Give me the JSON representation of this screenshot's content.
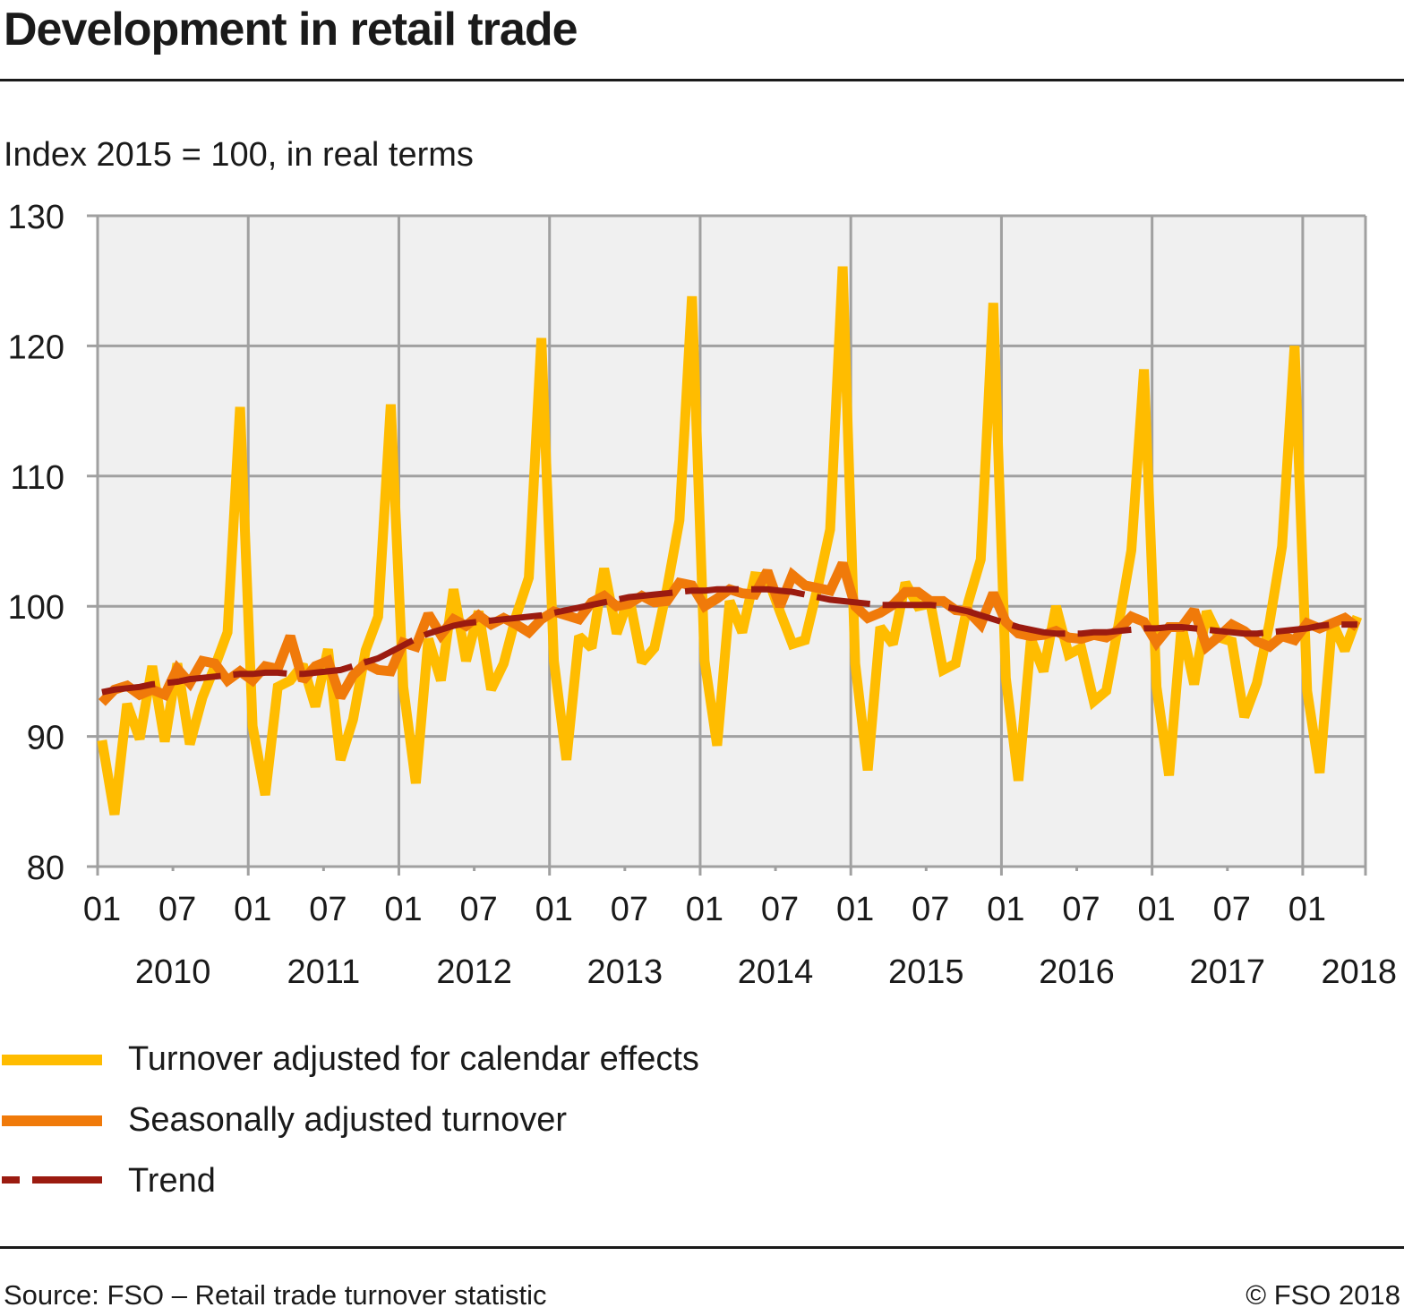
{
  "title": "Development in retail trade",
  "subtitle": "Index 2015 = 100, in real terms",
  "footer": {
    "source": "Source: FSO – Retail trade turnover statistic",
    "copyright": "© FSO 2018"
  },
  "colors": {
    "calendar": "#FFBC00",
    "seasonal": "#F07A0A",
    "trend": "#9B1B10",
    "plot_bg": "#F0F0F0",
    "grid": "#A0A0A0"
  },
  "chart_data": {
    "type": "line",
    "title": "Development in retail trade",
    "ylabel": "Index 2015 = 100, in real terms",
    "xlabel": "",
    "ylim": [
      80,
      130
    ],
    "yticks": [
      "80",
      "90",
      "100",
      "110",
      "120",
      "130"
    ],
    "x_start": "2010-01",
    "x_end_axis": "2018-06",
    "month_tick_labels": [
      "01",
      "07",
      "01",
      "07",
      "01",
      "07",
      "01",
      "07",
      "01",
      "07",
      "01",
      "07",
      "01",
      "07",
      "01",
      "07",
      "01"
    ],
    "year_labels": [
      "2010",
      "2011",
      "2012",
      "2013",
      "2014",
      "2015",
      "2016",
      "2017",
      "2018"
    ],
    "grid": true,
    "legend_position": "bottom",
    "series": [
      {
        "name": "Turnover adjusted for calendar effects",
        "style": "solid",
        "values": [
          89.7,
          84.0,
          92.5,
          89.8,
          95.4,
          89.6,
          95.6,
          89.4,
          93.0,
          95.4,
          98.0,
          115.3,
          90.8,
          85.5,
          93.8,
          94.3,
          95.5,
          92.3,
          96.7,
          88.2,
          91.3,
          96.6,
          99.2,
          115.5,
          93.8,
          86.4,
          97.5,
          94.3,
          101.3,
          95.8,
          99.6,
          93.6,
          95.6,
          99.3,
          102.2,
          120.6,
          95.8,
          88.2,
          97.7,
          96.8,
          102.9,
          97.9,
          100.7,
          95.7,
          96.8,
          101.3,
          106.6,
          123.8,
          95.8,
          89.3,
          100.4,
          98.0,
          102.3,
          102.2,
          99.6,
          97.1,
          97.4,
          101.4,
          105.9,
          126.1,
          95.6,
          87.4,
          98.4,
          97.1,
          101.8,
          100.0,
          100.2,
          95.1,
          95.6,
          100.3,
          103.6,
          123.3,
          94.5,
          86.6,
          97.5,
          95.0,
          100.0,
          96.3,
          96.8,
          92.7,
          93.5,
          98.7,
          104.3,
          118.2,
          93.8,
          87.0,
          98.5,
          94.0,
          99.6,
          97.6,
          97.3,
          91.5,
          94.1,
          98.7,
          104.6,
          120.0,
          93.5,
          87.2,
          98.8,
          96.6,
          99.2
        ]
      },
      {
        "name": "Seasonally adjusted turnover",
        "style": "solid",
        "values": [
          92.6,
          93.6,
          93.9,
          93.2,
          93.6,
          93.2,
          95.2,
          94.1,
          95.8,
          95.6,
          94.3,
          95.0,
          94.3,
          95.4,
          95.2,
          97.7,
          94.3,
          95.4,
          95.8,
          93.0,
          94.7,
          95.6,
          95.1,
          95.0,
          97.2,
          96.9,
          99.4,
          97.8,
          99.0,
          98.5,
          99.3,
          98.6,
          99.1,
          98.6,
          98.0,
          99.0,
          99.6,
          99.3,
          99.0,
          100.3,
          100.8,
          100.0,
          100.2,
          100.8,
          100.3,
          100.4,
          101.8,
          101.6,
          100.0,
          100.6,
          101.3,
          101.0,
          100.9,
          102.7,
          100.0,
          102.4,
          101.6,
          101.4,
          101.2,
          103.3,
          100.0,
          99.1,
          99.5,
          100.1,
          101.1,
          101.1,
          100.4,
          100.4,
          99.7,
          99.6,
          98.6,
          101.0,
          98.8,
          97.9,
          97.7,
          97.8,
          98.1,
          97.6,
          97.5,
          97.8,
          97.6,
          98.2,
          99.2,
          98.8,
          97.2,
          98.4,
          98.4,
          99.7,
          96.9,
          97.7,
          98.6,
          98.1,
          97.3,
          96.9,
          97.7,
          97.4,
          98.7,
          98.3,
          98.7,
          99.1,
          98.4
        ]
      },
      {
        "name": "Trend",
        "style": "dashed",
        "values": [
          93.4,
          93.6,
          93.7,
          93.8,
          94.0,
          94.1,
          94.2,
          94.4,
          94.5,
          94.6,
          94.7,
          94.8,
          94.8,
          94.9,
          94.9,
          94.8,
          94.8,
          94.9,
          95.0,
          95.1,
          95.4,
          95.7,
          96.0,
          96.5,
          97.0,
          97.5,
          97.9,
          98.2,
          98.5,
          98.7,
          98.8,
          98.9,
          99.0,
          99.1,
          99.2,
          99.3,
          99.5,
          99.7,
          99.9,
          100.1,
          100.3,
          100.5,
          100.7,
          100.8,
          100.9,
          101.0,
          101.1,
          101.2,
          101.2,
          101.3,
          101.3,
          101.3,
          101.3,
          101.3,
          101.2,
          101.1,
          100.9,
          100.7,
          100.5,
          100.4,
          100.3,
          100.2,
          100.1,
          100.1,
          100.1,
          100.1,
          100.1,
          100.0,
          99.8,
          99.6,
          99.3,
          99.0,
          98.7,
          98.4,
          98.2,
          98.0,
          97.9,
          97.9,
          97.9,
          98.0,
          98.0,
          98.1,
          98.2,
          98.3,
          98.3,
          98.4,
          98.4,
          98.3,
          98.2,
          98.1,
          98.0,
          97.9,
          97.9,
          98.0,
          98.1,
          98.2,
          98.3,
          98.5,
          98.6,
          98.6,
          98.6
        ]
      }
    ]
  }
}
